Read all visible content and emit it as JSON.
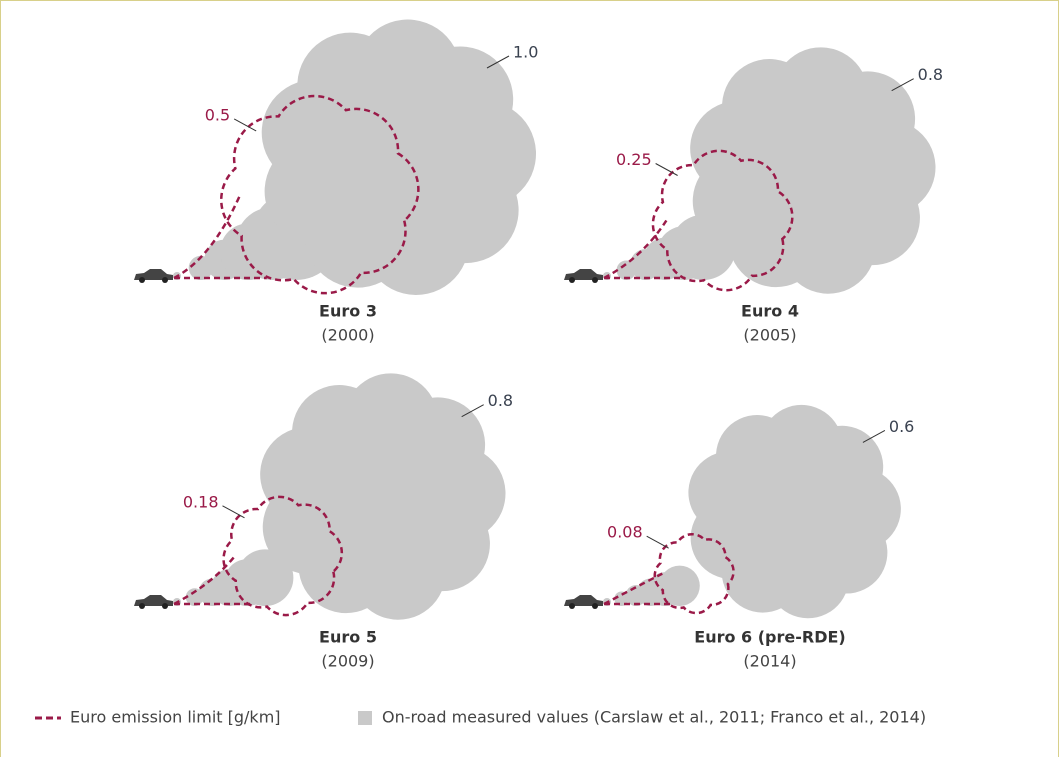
{
  "panels": [
    {
      "name": "Euro 3",
      "year": "(2000)",
      "limit": "0.5",
      "measured": "1.0"
    },
    {
      "name": "Euro 4",
      "year": "(2005)",
      "limit": "0.25",
      "measured": "0.8"
    },
    {
      "name": "Euro 5",
      "year": "(2009)",
      "limit": "0.18",
      "measured": "0.8"
    },
    {
      "name": "Euro 6 (pre-RDE)",
      "year": "(2014)",
      "limit": "0.08",
      "measured": "0.6"
    }
  ],
  "legend": {
    "limit": "Euro emission limit [g/km]",
    "measured": "On-road measured values (Carslaw et al., 2011; Franco et al., 2014)"
  }
}
